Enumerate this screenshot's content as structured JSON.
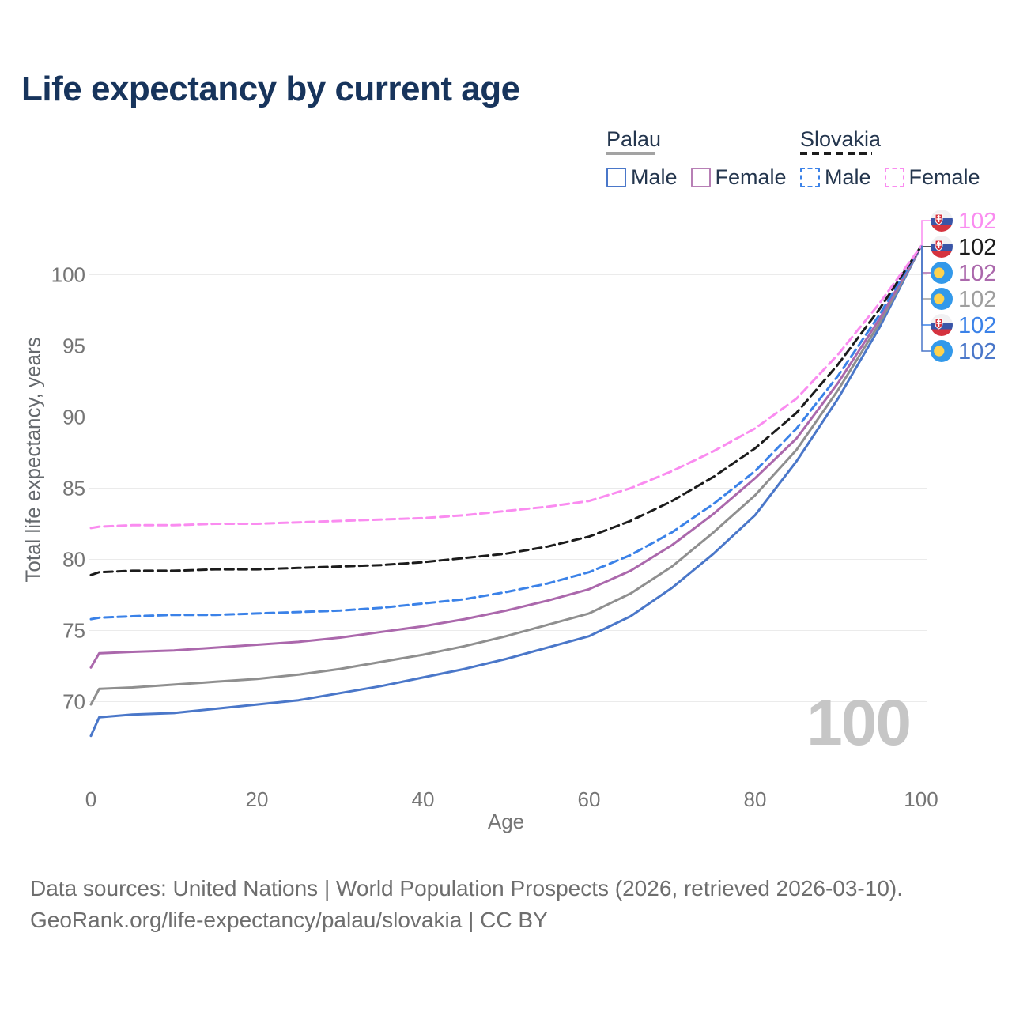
{
  "title": "Life expectancy by current age",
  "legend": {
    "groups": [
      {
        "country": "Palau",
        "line_style": "solid",
        "underline_color": "#a3a3a3",
        "items": [
          {
            "label": "Male",
            "color": "#4a77c9"
          },
          {
            "label": "Female",
            "color": "#b77fb5"
          }
        ]
      },
      {
        "country": "Slovakia",
        "line_style": "dashed",
        "underline_color": "#1c1c1c",
        "items": [
          {
            "label": "Male",
            "color": "#3b82e8"
          },
          {
            "label": "Female",
            "color": "#fa8cf0"
          }
        ]
      }
    ]
  },
  "chart_data": {
    "type": "line",
    "title": "Life expectancy by current age",
    "xlabel": "Age",
    "ylabel": "Total life expectancy, years",
    "xticks": [
      0,
      20,
      40,
      60,
      80,
      100
    ],
    "yticks": [
      70,
      75,
      80,
      85,
      90,
      95,
      100
    ],
    "xlim": [
      0,
      100
    ],
    "ylim": [
      67,
      103
    ],
    "grid": "horizontal",
    "legend_position": "top-right",
    "watermark": "100",
    "ages": [
      0,
      1,
      5,
      10,
      15,
      20,
      25,
      30,
      35,
      40,
      45,
      50,
      55,
      60,
      65,
      70,
      75,
      80,
      85,
      90,
      95,
      100
    ],
    "series": [
      {
        "name": "Palau Male",
        "country": "Palau",
        "sex": "Male",
        "style": "solid",
        "color": "#4a77c9",
        "values": [
          67.6,
          68.9,
          69.1,
          69.2,
          69.5,
          69.8,
          70.1,
          70.6,
          71.1,
          71.7,
          72.3,
          73.0,
          73.8,
          74.6,
          76.0,
          78.0,
          80.4,
          83.1,
          86.9,
          91.3,
          96.3,
          102
        ]
      },
      {
        "name": "Palau Both sexes",
        "country": "Palau",
        "sex": "Both sexes",
        "style": "solid",
        "color": "#8f8f8f",
        "values": [
          69.8,
          70.9,
          71.0,
          71.2,
          71.4,
          71.6,
          71.9,
          72.3,
          72.8,
          73.3,
          73.9,
          74.6,
          75.4,
          76.2,
          77.6,
          79.5,
          81.9,
          84.5,
          87.7,
          91.9,
          96.6,
          102
        ]
      },
      {
        "name": "Palau Female",
        "country": "Palau",
        "sex": "Female",
        "style": "solid",
        "color": "#ab68ac",
        "values": [
          72.4,
          73.4,
          73.5,
          73.6,
          73.8,
          74.0,
          74.2,
          74.5,
          74.9,
          75.3,
          75.8,
          76.4,
          77.1,
          77.9,
          79.2,
          81.0,
          83.2,
          85.7,
          88.5,
          92.4,
          96.9,
          102
        ]
      },
      {
        "name": "Slovakia Male",
        "country": "Slovakia",
        "sex": "Male",
        "style": "dashed",
        "color": "#3b82e8",
        "values": [
          75.8,
          75.9,
          76.0,
          76.1,
          76.1,
          76.2,
          76.3,
          76.4,
          76.6,
          76.9,
          77.2,
          77.7,
          78.3,
          79.1,
          80.3,
          81.9,
          83.9,
          86.2,
          89.2,
          92.9,
          97.2,
          102
        ]
      },
      {
        "name": "Slovakia Both sexes",
        "country": "Slovakia",
        "sex": "Both sexes",
        "style": "dashed",
        "color": "#1c1c1c",
        "values": [
          78.9,
          79.1,
          79.2,
          79.2,
          79.3,
          79.3,
          79.4,
          79.5,
          79.6,
          79.8,
          80.1,
          80.4,
          80.9,
          81.6,
          82.7,
          84.1,
          85.8,
          87.8,
          90.3,
          93.7,
          97.6,
          102
        ]
      },
      {
        "name": "Slovakia Female",
        "country": "Slovakia",
        "sex": "Female",
        "style": "dashed",
        "color": "#fa8cf0",
        "values": [
          82.2,
          82.3,
          82.4,
          82.4,
          82.5,
          82.5,
          82.6,
          82.7,
          82.8,
          82.9,
          83.1,
          83.4,
          83.7,
          84.1,
          85.0,
          86.2,
          87.6,
          89.2,
          91.3,
          94.4,
          98.0,
          102
        ]
      }
    ],
    "end_labels": [
      {
        "series": "Slovakia Female",
        "value": 102,
        "flag": "slovakia",
        "color": "#fa8cf0"
      },
      {
        "series": "Slovakia Both sexes",
        "value": 102,
        "flag": "slovakia",
        "color": "#1c1c1c"
      },
      {
        "series": "Palau Female",
        "value": 102,
        "flag": "palau",
        "color": "#ab68ac"
      },
      {
        "series": "Palau Both sexes",
        "value": 102,
        "flag": "palau",
        "color": "#9e9e9e"
      },
      {
        "series": "Slovakia Male",
        "value": 102,
        "flag": "slovakia",
        "color": "#3b82e8"
      },
      {
        "series": "Palau Male",
        "value": 102,
        "flag": "palau",
        "color": "#4a77c9"
      }
    ],
    "flag_colors": {
      "palau_blue": "#3399ea",
      "palau_yellow": "#ffd24d",
      "slovakia_white": "#f1f1f3",
      "slovakia_blue": "#3a55a7",
      "slovakia_red": "#d5333f"
    }
  },
  "footer": {
    "line1": "Data sources: United Nations | World Population Prospects (2026, retrieved 2026-03-10).",
    "line2": "GeoRank.org/life-expectancy/palau/slovakia | CC BY"
  }
}
